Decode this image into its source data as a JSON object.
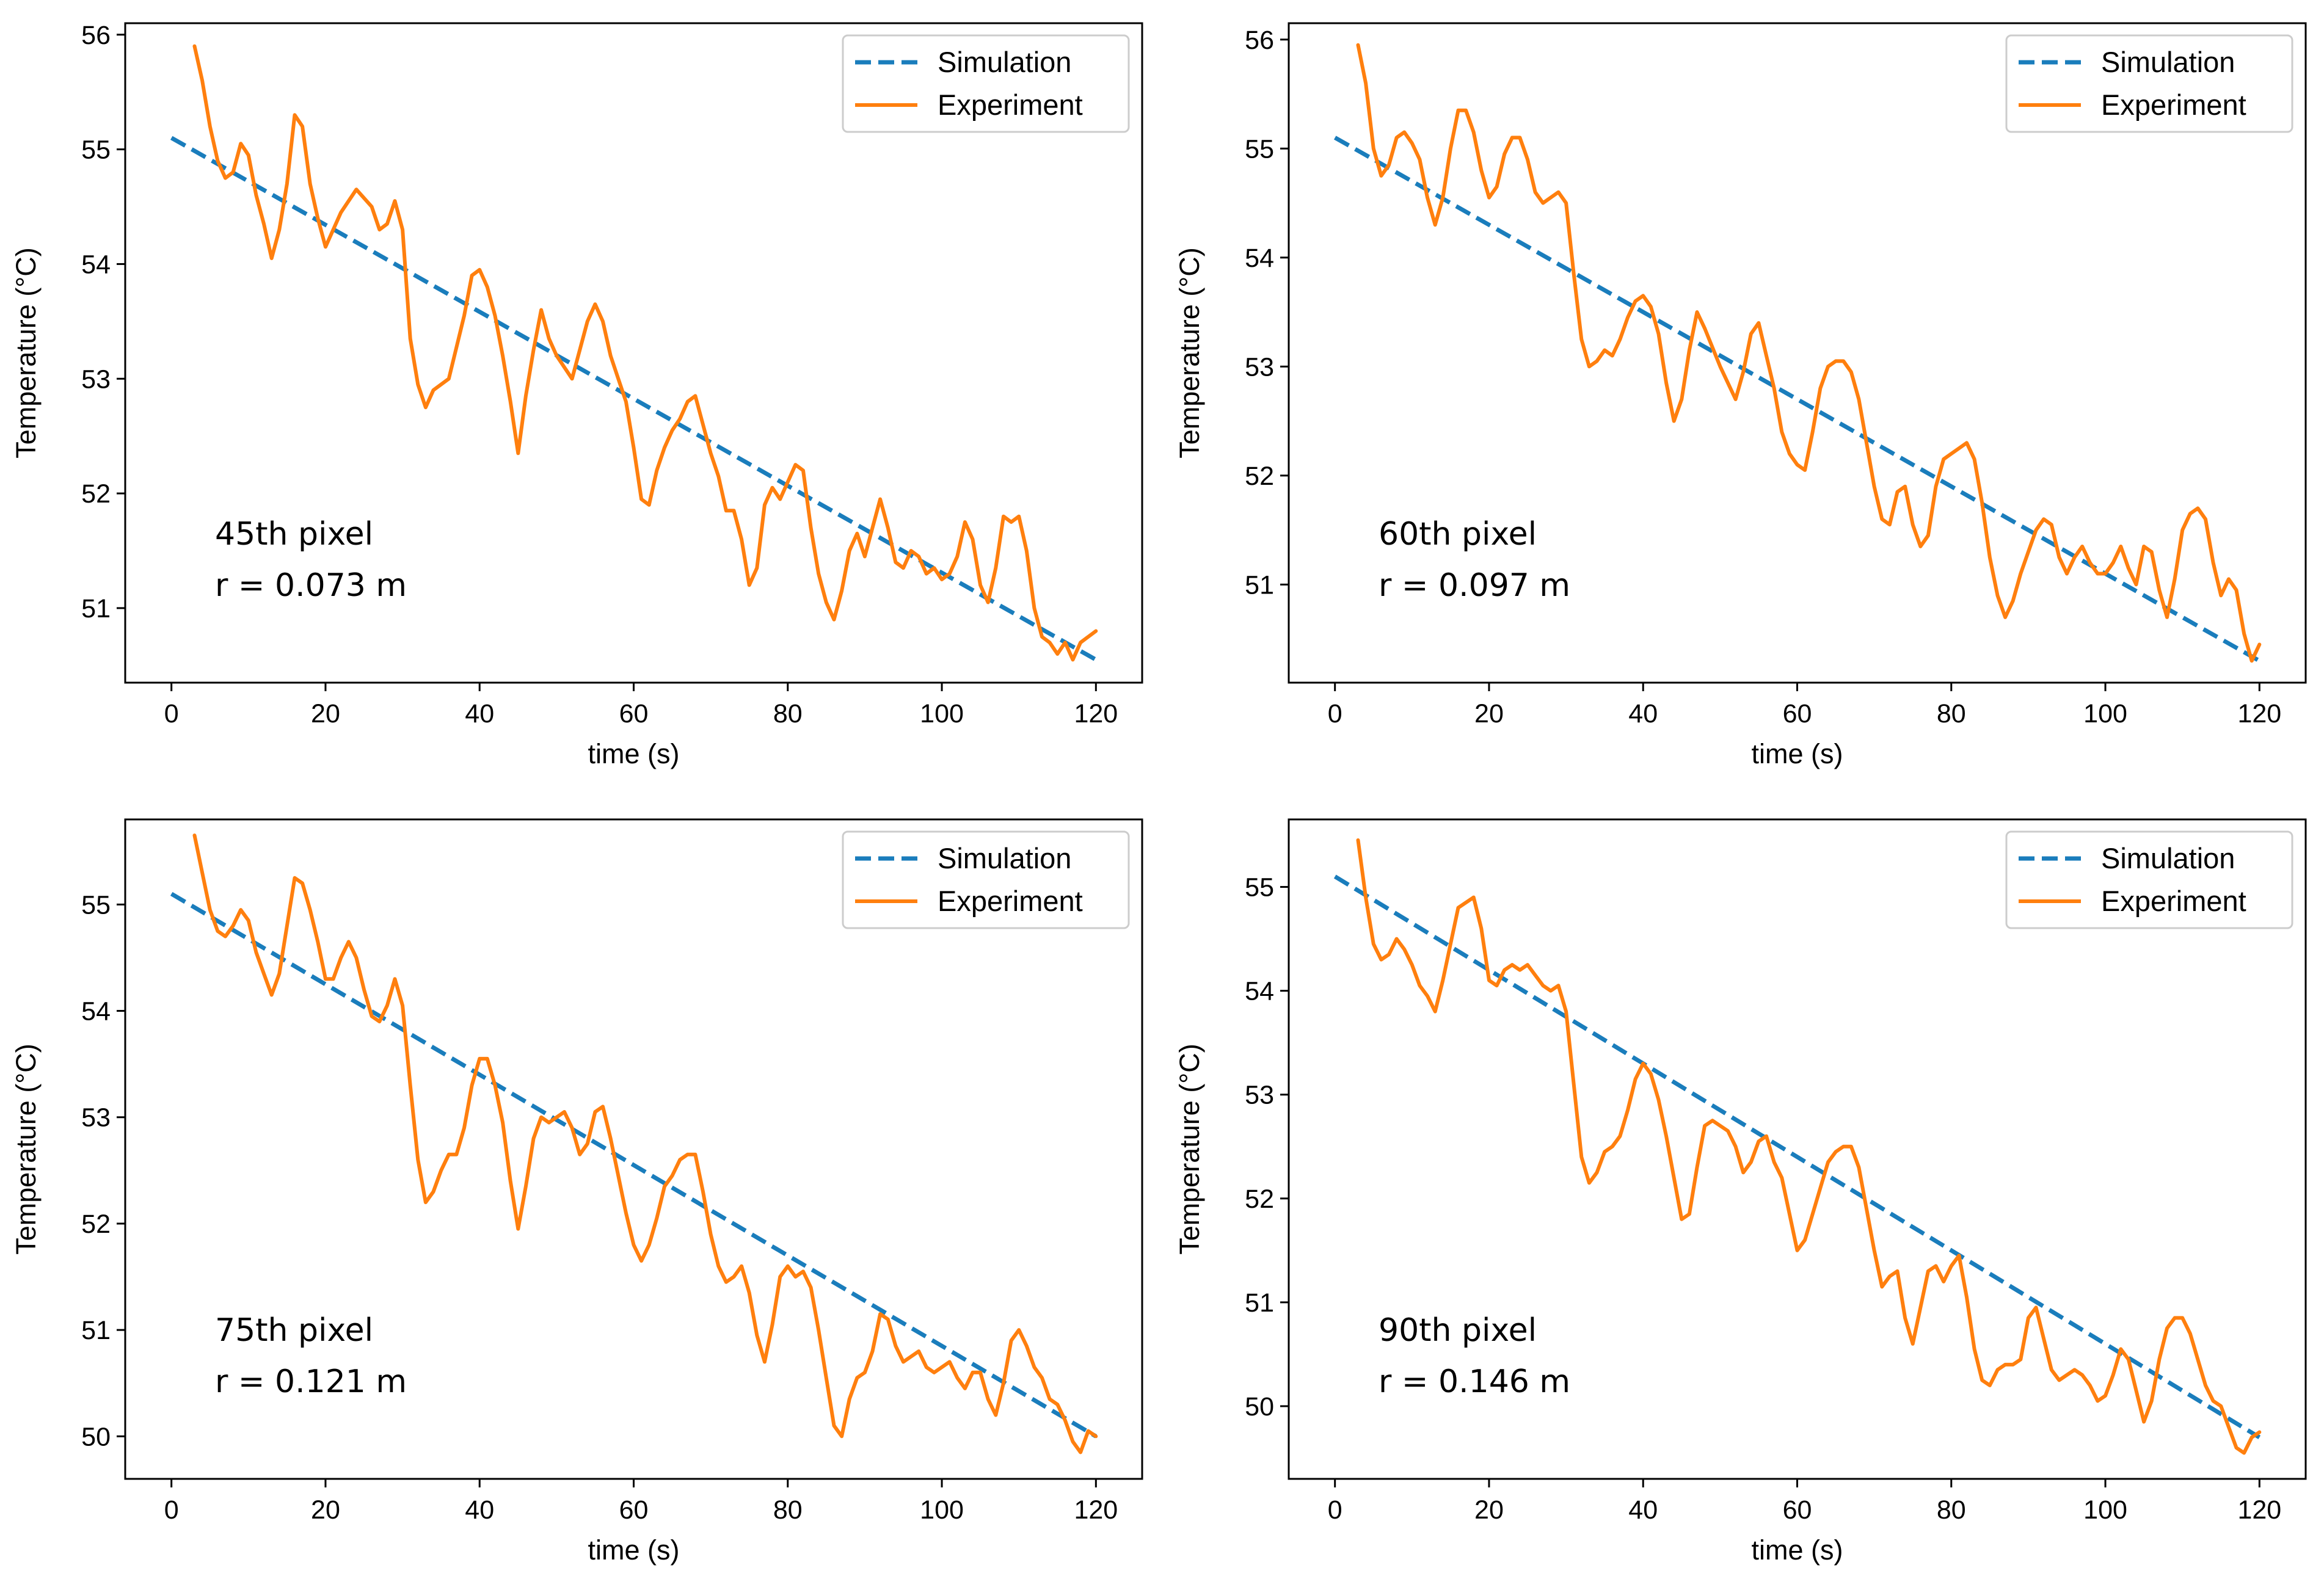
{
  "colors": {
    "simulation": "#1a7dbc",
    "experiment": "#ff7f0e",
    "axes": "#000000",
    "legend_border": "#cccccc"
  },
  "legend": {
    "simulation": "Simulation",
    "experiment": "Experiment"
  },
  "chart_data": [
    {
      "type": "line",
      "annotation_line1": "45th pixel",
      "annotation_line2": "r = 0.073 m",
      "xlabel": "time (s)",
      "ylabel": "Temperature (°C)",
      "xlim": [
        -6,
        126
      ],
      "ylim": [
        50.35,
        56.1
      ],
      "xticks": [
        0,
        20,
        40,
        60,
        80,
        100,
        120
      ],
      "yticks": [
        51,
        52,
        53,
        54,
        55,
        56
      ],
      "legend_location": "top-right",
      "series": [
        {
          "name": "Simulation",
          "style": "dashed",
          "x": [
            0,
            120
          ],
          "y": [
            55.1,
            50.55
          ]
        },
        {
          "name": "Experiment",
          "style": "solid",
          "x": [
            3,
            4,
            5,
            6,
            7,
            8,
            9,
            10,
            11,
            12,
            13,
            14,
            15,
            16,
            17,
            18,
            19,
            20,
            22,
            24,
            26,
            27,
            28,
            29,
            30,
            31,
            32,
            33,
            34,
            36,
            38,
            39,
            40,
            41,
            42,
            43,
            44,
            45,
            46,
            47,
            48,
            49,
            50,
            52,
            54,
            55,
            56,
            57,
            58,
            59,
            60,
            61,
            62,
            63,
            64,
            65,
            66,
            67,
            68,
            69,
            70,
            71,
            72,
            73,
            74,
            75,
            76,
            77,
            78,
            79,
            80,
            81,
            82,
            83,
            84,
            85,
            86,
            87,
            88,
            89,
            90,
            91,
            92,
            93,
            94,
            95,
            96,
            97,
            98,
            99,
            100,
            101,
            102,
            103,
            104,
            105,
            106,
            107,
            108,
            109,
            110,
            111,
            112,
            113,
            114,
            115,
            116,
            117,
            118,
            119,
            120
          ],
          "y": [
            55.9,
            55.6,
            55.2,
            54.9,
            54.75,
            54.8,
            55.05,
            54.95,
            54.6,
            54.35,
            54.05,
            54.3,
            54.7,
            55.3,
            55.2,
            54.7,
            54.4,
            54.15,
            54.45,
            54.65,
            54.5,
            54.3,
            54.35,
            54.55,
            54.3,
            53.35,
            52.95,
            52.75,
            52.9,
            53.0,
            53.55,
            53.9,
            53.95,
            53.8,
            53.55,
            53.2,
            52.8,
            52.35,
            52.85,
            53.25,
            53.6,
            53.35,
            53.2,
            53.0,
            53.5,
            53.65,
            53.5,
            53.2,
            53.0,
            52.8,
            52.4,
            51.95,
            51.9,
            52.2,
            52.4,
            52.55,
            52.65,
            52.8,
            52.85,
            52.6,
            52.35,
            52.15,
            51.85,
            51.85,
            51.6,
            51.2,
            51.35,
            51.9,
            52.05,
            51.95,
            52.1,
            52.25,
            52.2,
            51.7,
            51.3,
            51.05,
            50.9,
            51.15,
            51.5,
            51.65,
            51.45,
            51.7,
            51.95,
            51.7,
            51.4,
            51.35,
            51.5,
            51.45,
            51.3,
            51.35,
            51.25,
            51.3,
            51.45,
            51.75,
            51.6,
            51.2,
            51.05,
            51.35,
            51.8,
            51.75,
            51.8,
            51.5,
            51.0,
            50.75,
            50.7,
            50.6,
            50.7,
            50.55,
            50.7,
            50.75,
            50.8
          ]
        }
      ]
    },
    {
      "type": "line",
      "annotation_line1": "60th pixel",
      "annotation_line2": "r = 0.097 m",
      "xlabel": "time (s)",
      "ylabel": "Temperature (°C)",
      "xlim": [
        -6,
        126
      ],
      "ylim": [
        50.1,
        56.15
      ],
      "xticks": [
        0,
        20,
        40,
        60,
        80,
        100,
        120
      ],
      "yticks": [
        51,
        52,
        53,
        54,
        55,
        56
      ],
      "legend_location": "top-right",
      "series": [
        {
          "name": "Simulation",
          "style": "dashed",
          "x": [
            0,
            120
          ],
          "y": [
            55.1,
            50.3
          ]
        },
        {
          "name": "Experiment",
          "style": "solid",
          "x": [
            3,
            4,
            5,
            6,
            7,
            8,
            9,
            10,
            11,
            12,
            13,
            14,
            15,
            16,
            17,
            18,
            19,
            20,
            21,
            22,
            23,
            24,
            25,
            26,
            27,
            28,
            29,
            30,
            31,
            32,
            33,
            34,
            35,
            36,
            37,
            38,
            39,
            40,
            41,
            42,
            43,
            44,
            45,
            46,
            47,
            48,
            50,
            52,
            53,
            54,
            55,
            56,
            57,
            58,
            59,
            60,
            61,
            62,
            63,
            64,
            65,
            66,
            67,
            68,
            69,
            70,
            71,
            72,
            73,
            74,
            75,
            76,
            77,
            78,
            79,
            80,
            81,
            82,
            83,
            84,
            85,
            86,
            87,
            88,
            89,
            90,
            91,
            92,
            93,
            94,
            95,
            96,
            97,
            98,
            99,
            100,
            101,
            102,
            103,
            104,
            105,
            106,
            107,
            108,
            109,
            110,
            111,
            112,
            113,
            114,
            115,
            116,
            117,
            118,
            119,
            120
          ],
          "y": [
            55.95,
            55.6,
            55.0,
            54.75,
            54.85,
            55.1,
            55.15,
            55.05,
            54.9,
            54.55,
            54.3,
            54.55,
            55.0,
            55.35,
            55.35,
            55.15,
            54.8,
            54.55,
            54.65,
            54.95,
            55.1,
            55.1,
            54.9,
            54.6,
            54.5,
            54.55,
            54.6,
            54.5,
            53.85,
            53.25,
            53.0,
            53.05,
            53.15,
            53.1,
            53.25,
            53.45,
            53.6,
            53.65,
            53.55,
            53.3,
            52.85,
            52.5,
            52.7,
            53.15,
            53.5,
            53.35,
            53.0,
            52.7,
            52.95,
            53.3,
            53.4,
            53.1,
            52.8,
            52.4,
            52.2,
            52.1,
            52.05,
            52.4,
            52.8,
            53.0,
            53.05,
            53.05,
            52.95,
            52.7,
            52.3,
            51.9,
            51.6,
            51.55,
            51.85,
            51.9,
            51.55,
            51.35,
            51.45,
            51.9,
            52.15,
            52.2,
            52.25,
            52.3,
            52.15,
            51.75,
            51.25,
            50.9,
            50.7,
            50.85,
            51.1,
            51.3,
            51.5,
            51.6,
            51.55,
            51.25,
            51.1,
            51.25,
            51.35,
            51.2,
            51.1,
            51.1,
            51.2,
            51.35,
            51.15,
            51.0,
            51.35,
            51.3,
            50.95,
            50.7,
            51.05,
            51.5,
            51.65,
            51.7,
            51.6,
            51.2,
            50.9,
            51.05,
            50.95,
            50.55,
            50.3,
            50.45
          ]
        }
      ]
    },
    {
      "type": "line",
      "annotation_line1": "75th pixel",
      "annotation_line2": "r = 0.121 m",
      "xlabel": "time (s)",
      "ylabel": "Temperature (°C)",
      "xlim": [
        -6,
        126
      ],
      "ylim": [
        49.6,
        55.8
      ],
      "xticks": [
        0,
        20,
        40,
        60,
        80,
        100,
        120
      ],
      "yticks": [
        50,
        51,
        52,
        53,
        54,
        55
      ],
      "legend_location": "top-right",
      "series": [
        {
          "name": "Simulation",
          "style": "dashed",
          "x": [
            0,
            120
          ],
          "y": [
            55.1,
            50.0
          ]
        },
        {
          "name": "Experiment",
          "style": "solid",
          "x": [
            3,
            4,
            5,
            6,
            7,
            8,
            9,
            10,
            11,
            12,
            13,
            14,
            15,
            16,
            17,
            18,
            19,
            20,
            21,
            22,
            23,
            24,
            25,
            26,
            27,
            28,
            29,
            30,
            31,
            32,
            33,
            34,
            35,
            36,
            37,
            38,
            39,
            40,
            41,
            42,
            43,
            44,
            45,
            46,
            47,
            48,
            49,
            50,
            51,
            52,
            53,
            54,
            55,
            56,
            57,
            58,
            59,
            60,
            61,
            62,
            63,
            64,
            65,
            66,
            67,
            68,
            69,
            70,
            71,
            72,
            73,
            74,
            75,
            76,
            77,
            78,
            79,
            80,
            81,
            82,
            83,
            84,
            85,
            86,
            87,
            88,
            89,
            90,
            91,
            92,
            93,
            94,
            95,
            96,
            97,
            98,
            99,
            100,
            101,
            102,
            103,
            104,
            105,
            106,
            107,
            108,
            109,
            110,
            111,
            112,
            113,
            114,
            115,
            116,
            117,
            118,
            119,
            120
          ],
          "y": [
            55.65,
            55.3,
            54.95,
            54.75,
            54.7,
            54.8,
            54.95,
            54.85,
            54.55,
            54.35,
            54.15,
            54.35,
            54.8,
            55.25,
            55.2,
            54.95,
            54.65,
            54.3,
            54.3,
            54.5,
            54.65,
            54.5,
            54.2,
            53.95,
            53.9,
            54.05,
            54.3,
            54.05,
            53.3,
            52.6,
            52.2,
            52.3,
            52.5,
            52.65,
            52.65,
            52.9,
            53.3,
            53.55,
            53.55,
            53.3,
            52.95,
            52.4,
            51.95,
            52.35,
            52.8,
            53.0,
            52.95,
            53.0,
            53.05,
            52.9,
            52.65,
            52.75,
            53.05,
            53.1,
            52.8,
            52.45,
            52.1,
            51.8,
            51.65,
            51.8,
            52.05,
            52.35,
            52.45,
            52.6,
            52.65,
            52.65,
            52.3,
            51.9,
            51.6,
            51.45,
            51.5,
            51.6,
            51.35,
            50.95,
            50.7,
            51.05,
            51.5,
            51.6,
            51.5,
            51.55,
            51.4,
            51.0,
            50.55,
            50.1,
            50.0,
            50.35,
            50.55,
            50.6,
            50.8,
            51.15,
            51.1,
            50.85,
            50.7,
            50.75,
            50.8,
            50.65,
            50.6,
            50.65,
            50.7,
            50.55,
            50.45,
            50.6,
            50.6,
            50.35,
            50.2,
            50.5,
            50.9,
            51.0,
            50.85,
            50.65,
            50.55,
            50.35,
            50.3,
            50.15,
            49.95,
            49.85,
            50.05,
            50.0
          ]
        }
      ]
    },
    {
      "type": "line",
      "annotation_line1": "90th pixel",
      "annotation_line2": "r = 0.146 m",
      "xlabel": "time (s)",
      "ylabel": "Temperature (°C)",
      "xlim": [
        -6,
        126
      ],
      "ylim": [
        49.3,
        55.65
      ],
      "xticks": [
        0,
        20,
        40,
        60,
        80,
        100,
        120
      ],
      "yticks": [
        50,
        51,
        52,
        53,
        54,
        55
      ],
      "legend_location": "top-right",
      "series": [
        {
          "name": "Simulation",
          "style": "dashed",
          "x": [
            0,
            120
          ],
          "y": [
            55.1,
            49.7
          ]
        },
        {
          "name": "Experiment",
          "style": "solid",
          "x": [
            3,
            4,
            5,
            6,
            7,
            8,
            9,
            10,
            11,
            12,
            13,
            14,
            15,
            16,
            17,
            18,
            19,
            20,
            21,
            22,
            23,
            24,
            25,
            26,
            27,
            28,
            29,
            30,
            31,
            32,
            33,
            34,
            35,
            36,
            37,
            38,
            39,
            40,
            41,
            42,
            43,
            44,
            45,
            46,
            47,
            48,
            49,
            50,
            51,
            52,
            53,
            54,
            55,
            56,
            57,
            58,
            59,
            60,
            61,
            62,
            63,
            64,
            65,
            66,
            67,
            68,
            69,
            70,
            71,
            72,
            73,
            74,
            75,
            76,
            77,
            78,
            79,
            80,
            81,
            82,
            83,
            84,
            85,
            86,
            87,
            88,
            89,
            90,
            91,
            92,
            93,
            94,
            95,
            96,
            97,
            98,
            99,
            100,
            101,
            102,
            103,
            104,
            105,
            106,
            107,
            108,
            109,
            110,
            111,
            112,
            113,
            114,
            115,
            116,
            117,
            118,
            119,
            120
          ],
          "y": [
            55.45,
            54.9,
            54.45,
            54.3,
            54.35,
            54.5,
            54.4,
            54.25,
            54.05,
            53.95,
            53.8,
            54.1,
            54.45,
            54.8,
            54.85,
            54.9,
            54.6,
            54.1,
            54.05,
            54.2,
            54.25,
            54.2,
            54.25,
            54.15,
            54.05,
            54.0,
            54.05,
            53.8,
            53.1,
            52.4,
            52.15,
            52.25,
            52.45,
            52.5,
            52.6,
            52.85,
            53.15,
            53.3,
            53.2,
            52.95,
            52.6,
            52.2,
            51.8,
            51.85,
            52.3,
            52.7,
            52.75,
            52.7,
            52.65,
            52.5,
            52.25,
            52.35,
            52.55,
            52.6,
            52.35,
            52.2,
            51.85,
            51.5,
            51.6,
            51.85,
            52.1,
            52.35,
            52.45,
            52.5,
            52.5,
            52.3,
            51.9,
            51.5,
            51.15,
            51.25,
            51.3,
            50.85,
            50.6,
            50.95,
            51.3,
            51.35,
            51.2,
            51.35,
            51.45,
            51.05,
            50.55,
            50.25,
            50.2,
            50.35,
            50.4,
            50.4,
            50.45,
            50.85,
            50.95,
            50.65,
            50.35,
            50.25,
            50.3,
            50.35,
            50.3,
            50.2,
            50.05,
            50.1,
            50.3,
            50.55,
            50.45,
            50.15,
            49.85,
            50.05,
            50.45,
            50.75,
            50.85,
            50.85,
            50.7,
            50.45,
            50.2,
            50.05,
            50.0,
            49.8,
            49.6,
            49.55,
            49.7,
            49.75
          ]
        }
      ]
    }
  ]
}
